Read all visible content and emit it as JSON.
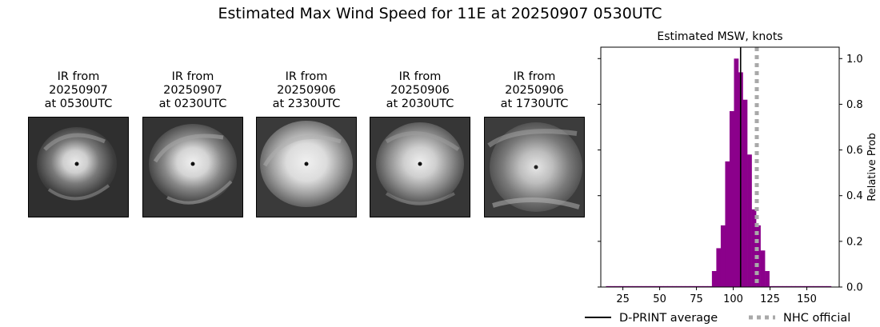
{
  "figure": {
    "title": "Estimated Max Wind Speed for 11E at 20250907 0530UTC"
  },
  "ir_panels": [
    {
      "line1": "IR from",
      "line2": "20250907",
      "line3": "at 0530UTC"
    },
    {
      "line1": "IR from",
      "line2": "20250907",
      "line3": "at 0230UTC"
    },
    {
      "line1": "IR from",
      "line2": "20250906",
      "line3": "at 2330UTC"
    },
    {
      "line1": "IR from",
      "line2": "20250906",
      "line3": "at 2030UTC"
    },
    {
      "line1": "IR from",
      "line2": "20250906",
      "line3": "at 1730UTC"
    }
  ],
  "chart_data": {
    "type": "bar",
    "title": "Estimated MSW, knots",
    "xlabel": "",
    "ylabel": "Relative Prob",
    "xlim": [
      10,
      172
    ],
    "ylim": [
      0,
      1.05
    ],
    "xticks": [
      25,
      50,
      75,
      100,
      125,
      150
    ],
    "yticks": [
      0.0,
      0.2,
      0.4,
      0.6,
      0.8,
      1.0
    ],
    "bar_color": "#8b008b",
    "bin_width": 3,
    "bins": [
      {
        "x": 15,
        "y": 0.004
      },
      {
        "x": 18,
        "y": 0.004
      },
      {
        "x": 21,
        "y": 0.004
      },
      {
        "x": 24,
        "y": 0.004
      },
      {
        "x": 27,
        "y": 0.004
      },
      {
        "x": 30,
        "y": 0.004
      },
      {
        "x": 33,
        "y": 0.004
      },
      {
        "x": 36,
        "y": 0.004
      },
      {
        "x": 39,
        "y": 0.004
      },
      {
        "x": 42,
        "y": 0.004
      },
      {
        "x": 45,
        "y": 0.004
      },
      {
        "x": 48,
        "y": 0.004
      },
      {
        "x": 51,
        "y": 0.004
      },
      {
        "x": 54,
        "y": 0.004
      },
      {
        "x": 57,
        "y": 0.004
      },
      {
        "x": 60,
        "y": 0.004
      },
      {
        "x": 63,
        "y": 0.004
      },
      {
        "x": 66,
        "y": 0.004
      },
      {
        "x": 69,
        "y": 0.004
      },
      {
        "x": 72,
        "y": 0.004
      },
      {
        "x": 75,
        "y": 0.004
      },
      {
        "x": 78,
        "y": 0.004
      },
      {
        "x": 81,
        "y": 0.004
      },
      {
        "x": 84,
        "y": 0.004
      },
      {
        "x": 87,
        "y": 0.07
      },
      {
        "x": 90,
        "y": 0.17
      },
      {
        "x": 93,
        "y": 0.27
      },
      {
        "x": 96,
        "y": 0.55
      },
      {
        "x": 99,
        "y": 0.77
      },
      {
        "x": 102,
        "y": 1.0
      },
      {
        "x": 105,
        "y": 0.94
      },
      {
        "x": 108,
        "y": 0.82
      },
      {
        "x": 111,
        "y": 0.58
      },
      {
        "x": 114,
        "y": 0.34
      },
      {
        "x": 117,
        "y": 0.27
      },
      {
        "x": 120,
        "y": 0.16
      },
      {
        "x": 123,
        "y": 0.07
      },
      {
        "x": 126,
        "y": 0.004
      },
      {
        "x": 129,
        "y": 0.004
      },
      {
        "x": 132,
        "y": 0.004
      },
      {
        "x": 135,
        "y": 0.004
      },
      {
        "x": 138,
        "y": 0.004
      },
      {
        "x": 141,
        "y": 0.004
      },
      {
        "x": 144,
        "y": 0.004
      },
      {
        "x": 147,
        "y": 0.004
      },
      {
        "x": 150,
        "y": 0.004
      },
      {
        "x": 153,
        "y": 0.004
      },
      {
        "x": 156,
        "y": 0.004
      },
      {
        "x": 159,
        "y": 0.004
      },
      {
        "x": 162,
        "y": 0.004
      },
      {
        "x": 165,
        "y": 0.004
      }
    ],
    "lines": [
      {
        "name": "D-PRINT average",
        "x": 105,
        "color": "#000000",
        "style": "solid"
      },
      {
        "name": "NHC official",
        "x": 116,
        "color": "#a9a9a9",
        "style": "dotted"
      }
    ],
    "legend_placement": "bottom"
  }
}
